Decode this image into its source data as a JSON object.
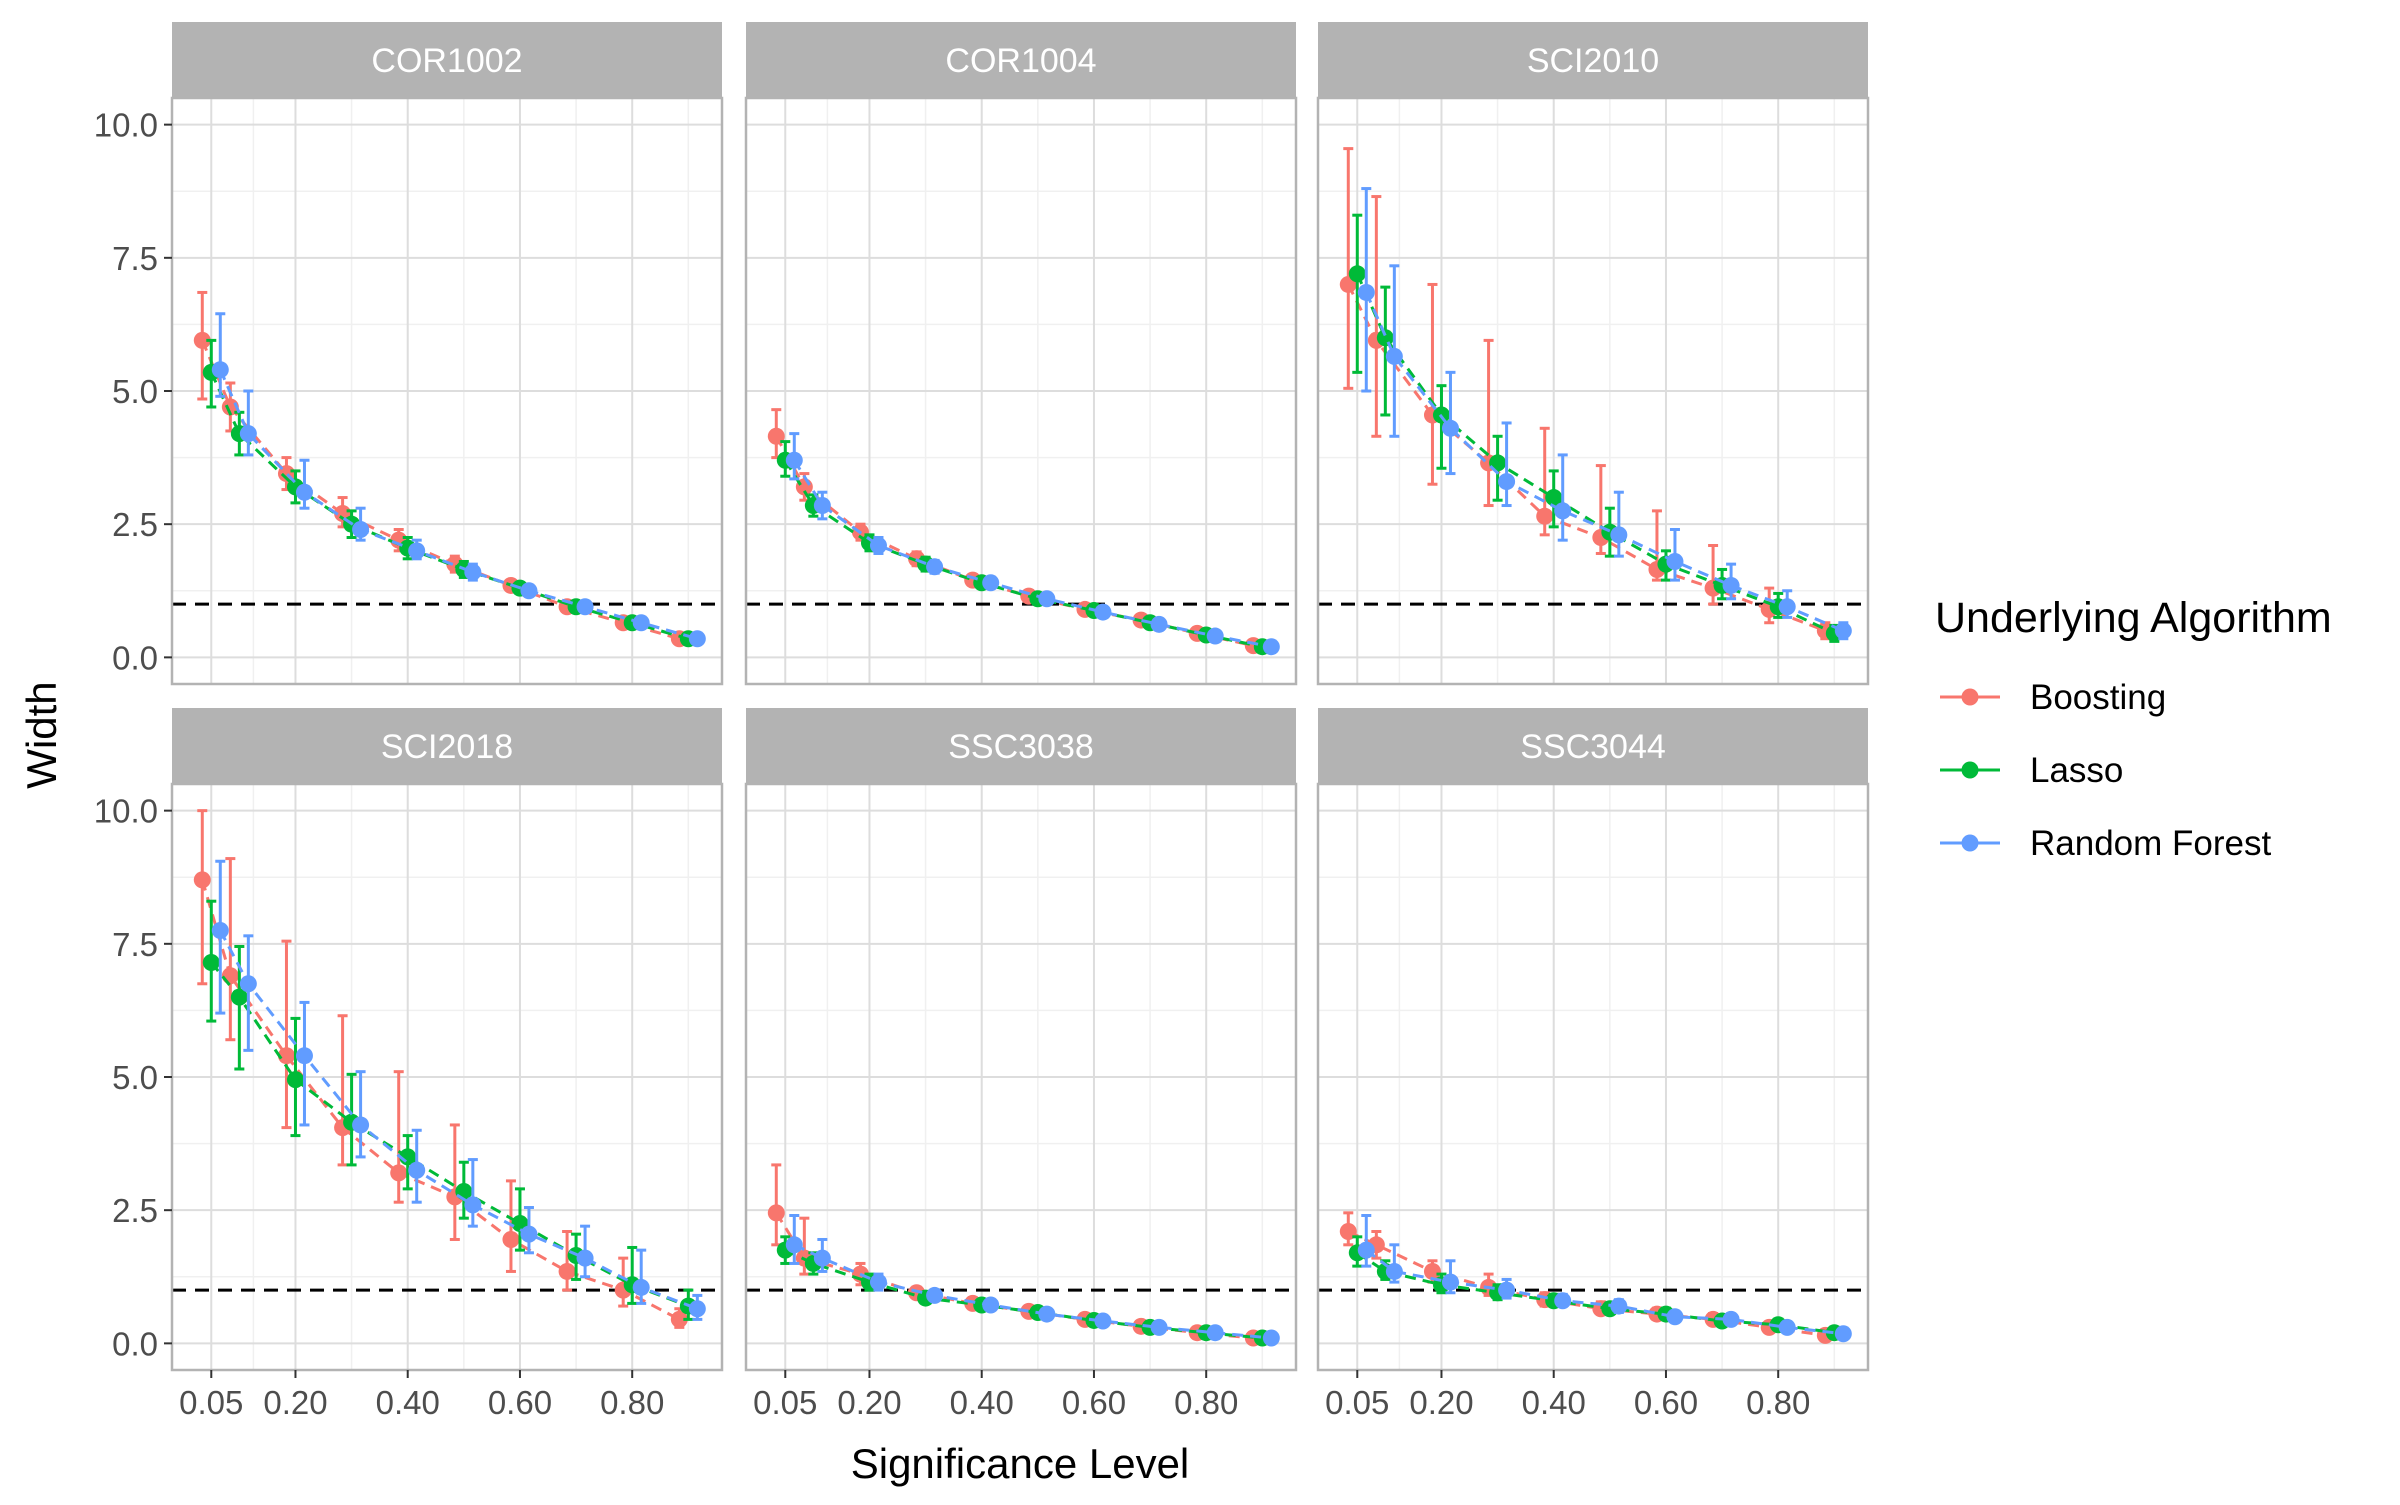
{
  "chart_data": {
    "type": "line",
    "xlabel": "Significance Level",
    "ylabel": "Width",
    "x_tick_labels": [
      "0.05",
      "0.20",
      "0.40",
      "0.60",
      "0.80"
    ],
    "x_ticks": [
      0.05,
      0.2,
      0.4,
      0.6,
      0.8
    ],
    "y_tick_labels": [
      "0.0",
      "2.5",
      "5.0",
      "7.5",
      "10.0"
    ],
    "y_ticks": [
      0,
      2.5,
      5,
      7.5,
      10
    ],
    "xlim": [
      -0.02,
      0.96
    ],
    "ylim": [
      -0.5,
      10.5
    ],
    "reference_line_y": 1,
    "grid": true,
    "legend": {
      "title": "Underlying Algorithm",
      "placement": "right",
      "entries": [
        {
          "name": "Boosting",
          "color": "#F8766D"
        },
        {
          "name": "Lasso",
          "color": "#00BA38"
        },
        {
          "name": "Random Forest",
          "color": "#619CFF"
        }
      ]
    },
    "x": [
      0.05,
      0.1,
      0.2,
      0.3,
      0.4,
      0.5,
      0.6,
      0.7,
      0.8,
      0.9
    ],
    "panels": [
      {
        "title": "COR1002",
        "series": [
          {
            "name": "Boosting",
            "y": [
              5.95,
              4.7,
              3.45,
              2.7,
              2.2,
              1.75,
              1.35,
              0.95,
              0.65,
              0.35
            ],
            "lo": [
              4.85,
              4.25,
              3.15,
              2.45,
              2.0,
              1.6,
              1.25,
              0.85,
              0.58,
              0.28
            ],
            "hi": [
              6.85,
              5.15,
              3.75,
              3.0,
              2.4,
              1.9,
              1.45,
              1.05,
              0.72,
              0.42
            ]
          },
          {
            "name": "Lasso",
            "y": [
              5.35,
              4.2,
              3.2,
              2.5,
              2.05,
              1.65,
              1.3,
              0.95,
              0.65,
              0.35
            ],
            "lo": [
              4.7,
              3.8,
              2.9,
              2.25,
              1.85,
              1.5,
              1.2,
              0.85,
              0.58,
              0.28
            ],
            "hi": [
              5.95,
              4.6,
              3.5,
              2.75,
              2.25,
              1.8,
              1.4,
              1.05,
              0.72,
              0.42
            ]
          },
          {
            "name": "Random Forest",
            "y": [
              5.4,
              4.2,
              3.1,
              2.4,
              2.0,
              1.6,
              1.25,
              0.95,
              0.65,
              0.35
            ],
            "lo": [
              4.9,
              3.8,
              2.8,
              2.2,
              1.85,
              1.45,
              1.15,
              0.85,
              0.58,
              0.28
            ],
            "hi": [
              6.45,
              5.0,
              3.7,
              2.8,
              2.2,
              1.75,
              1.35,
              1.05,
              0.72,
              0.42
            ]
          }
        ]
      },
      {
        "title": "COR1004",
        "series": [
          {
            "name": "Boosting",
            "y": [
              4.15,
              3.2,
              2.35,
              1.85,
              1.45,
              1.15,
              0.9,
              0.7,
              0.45,
              0.22
            ],
            "lo": [
              3.75,
              2.95,
              2.2,
              1.72,
              1.35,
              1.07,
              0.82,
              0.62,
              0.38,
              0.17
            ],
            "hi": [
              4.65,
              3.45,
              2.5,
              1.98,
              1.55,
              1.25,
              0.98,
              0.78,
              0.52,
              0.27
            ]
          },
          {
            "name": "Lasso",
            "y": [
              3.7,
              2.85,
              2.15,
              1.75,
              1.4,
              1.1,
              0.88,
              0.65,
              0.42,
              0.2
            ],
            "lo": [
              3.4,
              2.65,
              2.0,
              1.62,
              1.3,
              1.02,
              0.8,
              0.58,
              0.35,
              0.15
            ],
            "hi": [
              4.05,
              3.05,
              2.3,
              1.88,
              1.5,
              1.18,
              0.96,
              0.72,
              0.49,
              0.25
            ]
          },
          {
            "name": "Random Forest",
            "y": [
              3.7,
              2.85,
              2.1,
              1.7,
              1.4,
              1.1,
              0.85,
              0.62,
              0.4,
              0.2
            ],
            "lo": [
              3.35,
              2.6,
              1.95,
              1.58,
              1.3,
              1.02,
              0.78,
              0.55,
              0.33,
              0.15
            ],
            "hi": [
              4.2,
              3.1,
              2.25,
              1.82,
              1.5,
              1.18,
              0.92,
              0.7,
              0.47,
              0.25
            ]
          }
        ]
      },
      {
        "title": "SCI2010",
        "series": [
          {
            "name": "Boosting",
            "y": [
              7.0,
              5.95,
              4.55,
              3.65,
              2.65,
              2.25,
              1.65,
              1.3,
              0.9,
              0.5
            ],
            "lo": [
              5.05,
              4.15,
              3.25,
              2.85,
              2.3,
              1.95,
              1.45,
              1.0,
              0.65,
              0.35
            ],
            "hi": [
              9.55,
              8.65,
              7.0,
              5.95,
              4.3,
              3.6,
              2.75,
              2.1,
              1.3,
              0.65
            ]
          },
          {
            "name": "Lasso",
            "y": [
              7.2,
              6.0,
              4.55,
              3.65,
              3.0,
              2.35,
              1.75,
              1.35,
              0.95,
              0.45
            ],
            "lo": [
              5.35,
              4.55,
              3.55,
              2.95,
              2.45,
              1.9,
              1.45,
              1.1,
              0.75,
              0.3
            ],
            "hi": [
              8.3,
              6.95,
              5.1,
              4.15,
              3.5,
              2.8,
              2.0,
              1.65,
              1.2,
              0.6
            ]
          },
          {
            "name": "Random Forest",
            "y": [
              6.85,
              5.65,
              4.3,
              3.3,
              2.75,
              2.3,
              1.8,
              1.35,
              0.95,
              0.5
            ],
            "lo": [
              5.0,
              4.15,
              3.45,
              2.85,
              2.2,
              1.9,
              1.45,
              1.1,
              0.75,
              0.35
            ],
            "hi": [
              8.8,
              7.35,
              5.35,
              4.4,
              3.8,
              3.1,
              2.4,
              1.75,
              1.25,
              0.65
            ]
          }
        ]
      },
      {
        "title": "SCI2018",
        "series": [
          {
            "name": "Boosting",
            "y": [
              8.7,
              6.9,
              5.4,
              4.05,
              3.2,
              2.75,
              1.95,
              1.35,
              1.0,
              0.45
            ],
            "lo": [
              6.75,
              5.7,
              4.05,
              3.35,
              2.65,
              1.95,
              1.35,
              1.0,
              0.7,
              0.3
            ],
            "hi": [
              10.0,
              9.1,
              7.55,
              6.15,
              5.1,
              4.1,
              3.05,
              2.1,
              1.6,
              0.65
            ]
          },
          {
            "name": "Lasso",
            "y": [
              7.15,
              6.5,
              4.95,
              4.15,
              3.5,
              2.85,
              2.25,
              1.65,
              1.1,
              0.7
            ],
            "lo": [
              6.05,
              5.15,
              3.9,
              3.35,
              2.9,
              2.35,
              1.75,
              1.2,
              0.75,
              0.45
            ],
            "hi": [
              8.3,
              7.45,
              6.1,
              5.05,
              3.9,
              3.4,
              2.9,
              2.05,
              1.8,
              1.0
            ]
          },
          {
            "name": "Random Forest",
            "y": [
              7.75,
              6.75,
              5.4,
              4.1,
              3.25,
              2.6,
              2.05,
              1.6,
              1.05,
              0.65
            ],
            "lo": [
              6.2,
              5.5,
              4.1,
              3.5,
              2.65,
              2.2,
              1.7,
              1.25,
              0.75,
              0.45
            ],
            "hi": [
              9.05,
              7.65,
              6.4,
              5.1,
              4.0,
              3.45,
              2.55,
              2.2,
              1.75,
              0.9
            ]
          }
        ]
      },
      {
        "title": "SSC3038",
        "series": [
          {
            "name": "Boosting",
            "y": [
              2.45,
              1.6,
              1.3,
              0.95,
              0.75,
              0.6,
              0.45,
              0.32,
              0.2,
              0.1
            ],
            "lo": [
              1.85,
              1.3,
              1.1,
              0.85,
              0.65,
              0.52,
              0.38,
              0.25,
              0.14,
              0.05
            ],
            "hi": [
              3.35,
              2.35,
              1.5,
              1.05,
              0.85,
              0.68,
              0.52,
              0.39,
              0.26,
              0.15
            ]
          },
          {
            "name": "Lasso",
            "y": [
              1.75,
              1.5,
              1.15,
              0.85,
              0.72,
              0.58,
              0.43,
              0.3,
              0.2,
              0.1
            ],
            "lo": [
              1.5,
              1.3,
              1.0,
              0.75,
              0.63,
              0.5,
              0.36,
              0.23,
              0.14,
              0.05
            ],
            "hi": [
              2.0,
              1.7,
              1.3,
              0.95,
              0.82,
              0.66,
              0.5,
              0.37,
              0.26,
              0.15
            ]
          },
          {
            "name": "Random Forest",
            "y": [
              1.85,
              1.6,
              1.15,
              0.9,
              0.72,
              0.55,
              0.42,
              0.3,
              0.2,
              0.1
            ],
            "lo": [
              1.5,
              1.35,
              1.0,
              0.8,
              0.63,
              0.47,
              0.35,
              0.23,
              0.14,
              0.05
            ],
            "hi": [
              2.4,
              1.95,
              1.3,
              1.0,
              0.82,
              0.63,
              0.49,
              0.37,
              0.26,
              0.15
            ]
          }
        ]
      },
      {
        "title": "SSC3044",
        "series": [
          {
            "name": "Boosting",
            "y": [
              2.1,
              1.85,
              1.35,
              1.05,
              0.82,
              0.65,
              0.55,
              0.45,
              0.3,
              0.15
            ],
            "lo": [
              1.85,
              1.6,
              1.15,
              0.9,
              0.7,
              0.55,
              0.45,
              0.35,
              0.22,
              0.08
            ],
            "hi": [
              2.45,
              2.1,
              1.55,
              1.3,
              0.95,
              0.78,
              0.66,
              0.56,
              0.38,
              0.22
            ]
          },
          {
            "name": "Lasso",
            "y": [
              1.7,
              1.35,
              1.1,
              0.95,
              0.8,
              0.65,
              0.55,
              0.42,
              0.35,
              0.2
            ],
            "lo": [
              1.45,
              1.2,
              0.95,
              0.82,
              0.7,
              0.55,
              0.45,
              0.33,
              0.25,
              0.12
            ],
            "hi": [
              2.0,
              1.55,
              1.3,
              1.1,
              0.92,
              0.76,
              0.66,
              0.52,
              0.45,
              0.28
            ]
          },
          {
            "name": "Random Forest",
            "y": [
              1.75,
              1.35,
              1.15,
              1.0,
              0.8,
              0.7,
              0.5,
              0.45,
              0.3,
              0.18
            ],
            "lo": [
              1.45,
              1.15,
              0.95,
              0.85,
              0.7,
              0.58,
              0.42,
              0.35,
              0.22,
              0.1
            ],
            "hi": [
              2.4,
              1.85,
              1.55,
              1.2,
              0.92,
              0.82,
              0.6,
              0.55,
              0.38,
              0.26
            ]
          }
        ]
      }
    ]
  }
}
